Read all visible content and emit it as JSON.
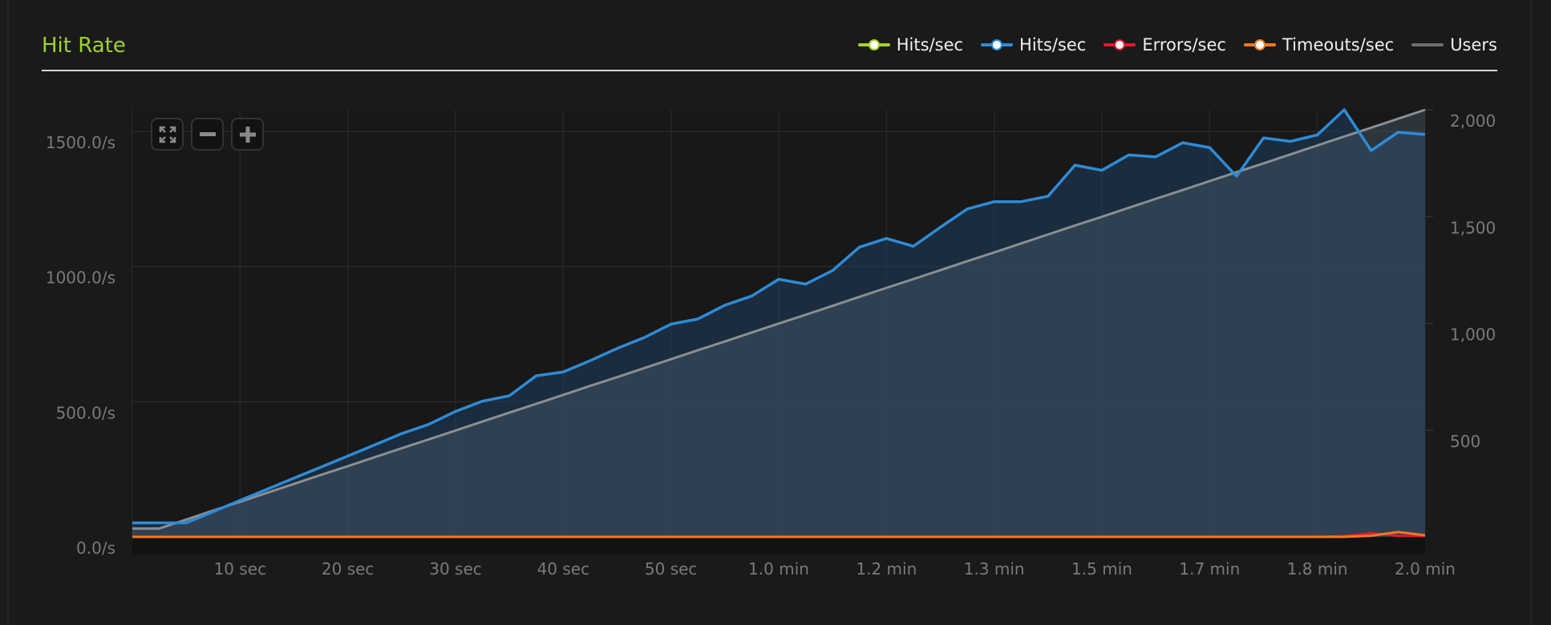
{
  "title": "Hit Rate",
  "legend": [
    {
      "label": "Hits/sec",
      "color": "#a6d22a",
      "style": "dot"
    },
    {
      "label": "Hits/sec",
      "color": "#2f8bd6",
      "style": "dot"
    },
    {
      "label": "Errors/sec",
      "color": "#e0192f",
      "style": "dot"
    },
    {
      "label": "Timeouts/sec",
      "color": "#f07a22",
      "style": "dot"
    },
    {
      "label": "Users",
      "color": "#6e6e6e",
      "style": "line"
    }
  ],
  "zoom_controls": [
    {
      "name": "reset-zoom",
      "icon": "expand-arrows-icon"
    },
    {
      "name": "zoom-out",
      "icon": "minus-icon"
    },
    {
      "name": "zoom-in",
      "icon": "plus-icon"
    }
  ],
  "chart_data": {
    "type": "line",
    "title": "Hit Rate",
    "x_unit": "sec",
    "xlim": [
      0,
      120
    ],
    "x_ticks": [
      {
        "value": 10,
        "label": "10 sec"
      },
      {
        "value": 20,
        "label": "20 sec"
      },
      {
        "value": 30,
        "label": "30 sec"
      },
      {
        "value": 40,
        "label": "40 sec"
      },
      {
        "value": 50,
        "label": "50 sec"
      },
      {
        "value": 60,
        "label": "1.0 min"
      },
      {
        "value": 70,
        "label": "1.2 min"
      },
      {
        "value": 80,
        "label": "1.3 min"
      },
      {
        "value": 90,
        "label": "1.5 min"
      },
      {
        "value": 100,
        "label": "1.7 min"
      },
      {
        "value": 110,
        "label": "1.8 min"
      },
      {
        "value": 120,
        "label": "2.0 min"
      }
    ],
    "y_left": {
      "ylim": [
        0,
        1580
      ],
      "ticks": [
        {
          "value": 0,
          "label": "0.0/s"
        },
        {
          "value": 500,
          "label": "500.0/s"
        },
        {
          "value": 1000,
          "label": "1000.0/s"
        },
        {
          "value": 1500,
          "label": "1500.0/s"
        }
      ]
    },
    "y_right": {
      "ylim": [
        0,
        2000
      ],
      "ticks": [
        {
          "value": 500,
          "label": "500"
        },
        {
          "value": 1000,
          "label": "1,000"
        },
        {
          "value": 1500,
          "label": "1,500"
        },
        {
          "value": 2000,
          "label": "2,000"
        }
      ]
    },
    "grid": true,
    "legend_position": "top-right",
    "x": [
      0,
      2.5,
      5,
      7.5,
      10,
      12.5,
      15,
      17.5,
      20,
      22.5,
      25,
      27.5,
      30,
      32.5,
      35,
      37.5,
      40,
      42.5,
      45,
      47.5,
      50,
      52.5,
      55,
      57.5,
      60,
      62.5,
      65,
      67.5,
      70,
      72.5,
      75,
      77.5,
      80,
      82.5,
      85,
      87.5,
      90,
      92.5,
      95,
      97.5,
      100,
      102.5,
      105,
      107.5,
      110,
      112.5,
      115,
      117.5,
      120
    ],
    "series": [
      {
        "name": "Hits/sec",
        "axis": "left",
        "color": "#2f8bd6",
        "fill": true,
        "values": [
          52,
          52,
          52,
          93,
          135,
          176,
          217,
          258,
          299,
          340,
          382,
          416,
          464,
          502,
          522,
          596,
          610,
          652,
          697,
          737,
          787,
          806,
          857,
          891,
          953,
          935,
          985,
          1072,
          1104,
          1075,
          1145,
          1213,
          1240,
          1240,
          1260,
          1375,
          1356,
          1413,
          1406,
          1458,
          1440,
          1334,
          1476,
          1463,
          1487,
          1580,
          1429,
          1497,
          1489
        ]
      },
      {
        "name": "Errors/sec",
        "axis": "left",
        "color": "#e0192f",
        "values": [
          0,
          0,
          0,
          0,
          0,
          0,
          0,
          0,
          0,
          0,
          0,
          0,
          0,
          0,
          0,
          0,
          0,
          0,
          0,
          0,
          0,
          0,
          0,
          0,
          0,
          0,
          0,
          0,
          0,
          0,
          0,
          0,
          0,
          0,
          0,
          0,
          0,
          0,
          0,
          0,
          0,
          0,
          0,
          0,
          0,
          3,
          14,
          4,
          3
        ]
      },
      {
        "name": "Timeouts/sec",
        "axis": "left",
        "color": "#f07a22",
        "values": [
          0,
          0,
          0,
          0,
          0,
          0,
          0,
          0,
          0,
          0,
          0,
          0,
          0,
          0,
          0,
          0,
          0,
          0,
          0,
          0,
          0,
          0,
          0,
          0,
          0,
          0,
          0,
          0,
          0,
          0,
          0,
          0,
          0,
          0,
          0,
          0,
          0,
          0,
          0,
          0,
          0,
          0,
          0,
          0,
          0,
          0,
          4,
          18,
          6
        ]
      },
      {
        "name": "Users",
        "axis": "right",
        "color": "#6e6e6e",
        "fill": true,
        "values": [
          39,
          39,
          81,
          123,
          164,
          206,
          248,
          290,
          331,
          373,
          415,
          456,
          498,
          540,
          582,
          623,
          665,
          707,
          748,
          790,
          832,
          874,
          915,
          957,
          999,
          1040,
          1082,
          1124,
          1166,
          1207,
          1249,
          1291,
          1332,
          1374,
          1416,
          1458,
          1499,
          1541,
          1583,
          1624,
          1666,
          1708,
          1749,
          1791,
          1833,
          1875,
          1916,
          1958,
          2000
        ]
      }
    ]
  }
}
